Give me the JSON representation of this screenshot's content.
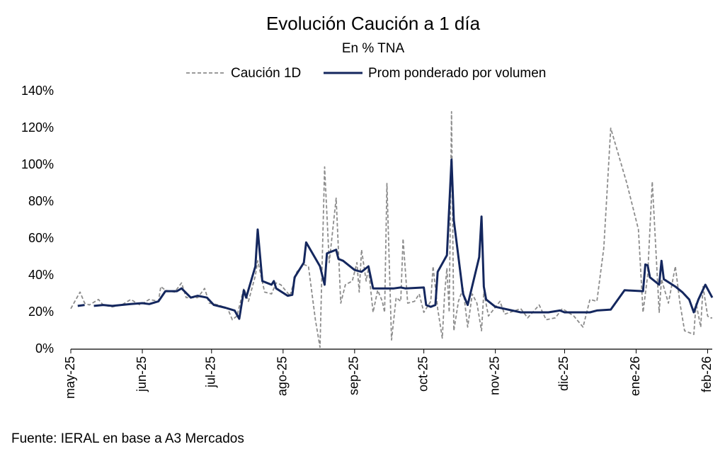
{
  "chart_data": {
    "type": "line",
    "title": "Evolución Caución a 1 día",
    "subtitle": "En % TNA",
    "source": "Fuente: IERAL en base a A3 Mercados",
    "xlim": [
      0,
      278
    ],
    "xticks": [
      {
        "value": 0,
        "label": "may-25"
      },
      {
        "value": 31,
        "label": "jun-25"
      },
      {
        "value": 61,
        "label": "jul-25"
      },
      {
        "value": 92,
        "label": "ago-25"
      },
      {
        "value": 123,
        "label": "sep-25"
      },
      {
        "value": 153,
        "label": "oct-25"
      },
      {
        "value": 184,
        "label": "nov-25"
      },
      {
        "value": 214,
        "label": "dic-25"
      },
      {
        "value": 245,
        "label": "ene-26"
      },
      {
        "value": 276,
        "label": "feb-26"
      }
    ],
    "ylim": [
      0,
      140
    ],
    "yticks": [
      {
        "value": 0,
        "label": "0%"
      },
      {
        "value": 20,
        "label": "20%"
      },
      {
        "value": 40,
        "label": "40%"
      },
      {
        "value": 60,
        "label": "60%"
      },
      {
        "value": 80,
        "label": "80%"
      },
      {
        "value": 100,
        "label": "100%"
      },
      {
        "value": 120,
        "label": "120%"
      },
      {
        "value": 140,
        "label": "140%"
      }
    ],
    "series": [
      {
        "name": "Caución 1D",
        "color": "#8c8c8c",
        "dashed": true,
        "x": [
          0,
          4,
          6,
          8,
          12,
          14,
          18,
          22,
          26,
          30,
          34,
          38,
          39,
          41,
          45,
          48,
          50,
          55,
          58,
          60,
          64,
          68,
          70,
          72,
          75,
          77,
          80,
          81,
          84,
          87,
          89,
          91,
          95,
          98,
          101,
          103,
          106,
          108,
          110,
          112,
          115,
          117,
          119,
          122,
          124,
          125,
          126,
          128,
          129,
          131,
          133,
          135,
          136,
          137,
          139,
          141,
          143,
          144,
          146,
          149,
          151,
          153,
          154,
          156,
          157,
          159,
          161,
          162,
          163,
          164,
          165,
          166,
          168,
          170,
          172,
          174,
          176,
          178,
          179,
          181,
          186,
          188,
          195,
          198,
          203,
          206,
          210,
          213,
          218,
          222,
          225,
          228,
          231,
          234,
          241,
          246,
          248,
          250,
          252,
          255,
          256,
          259,
          262,
          264,
          266,
          270,
          271,
          273,
          274,
          276,
          277,
          278
        ],
        "values": [
          22,
          31,
          25,
          24,
          27,
          24,
          23,
          24,
          27,
          24,
          27,
          26,
          34,
          32,
          31,
          36,
          28,
          28,
          33,
          25,
          24,
          22,
          16,
          18,
          33,
          26,
          40,
          48,
          31,
          30,
          36,
          35,
          29,
          42,
          46,
          45,
          16,
          1,
          99,
          47,
          82,
          25,
          35,
          37,
          47,
          31,
          54,
          37,
          44,
          20,
          32,
          26,
          20,
          90,
          5,
          28,
          26,
          60,
          25,
          26,
          30,
          20,
          22,
          26,
          45,
          22,
          6,
          30,
          44,
          20,
          129,
          10,
          26,
          33,
          12,
          30,
          25,
          10,
          31,
          18,
          26,
          19,
          22,
          17,
          24,
          16,
          17,
          22,
          18,
          12,
          27,
          26,
          55,
          120,
          90,
          65,
          20,
          40,
          91,
          20,
          38,
          25,
          45,
          25,
          10,
          8,
          25,
          12,
          34,
          18,
          17,
          17
        ]
      },
      {
        "name": "Prom ponderado por volumen",
        "color": "#14275e",
        "dashed": false,
        "x": [
          3,
          6,
          8,
          10,
          14,
          18,
          26,
          31,
          34,
          38,
          41,
          46,
          48,
          52,
          55,
          59,
          62,
          67,
          71,
          73,
          75,
          76,
          80,
          81,
          83,
          87,
          88,
          89,
          94,
          96,
          97,
          101,
          102,
          108,
          110,
          111,
          115,
          116,
          118,
          123,
          126,
          129,
          131,
          140,
          143,
          145,
          153,
          154,
          156,
          158,
          159,
          163,
          165,
          166,
          170,
          172,
          177,
          178,
          179,
          180,
          184,
          195,
          207,
          212,
          214,
          225,
          228,
          234,
          240,
          248,
          249,
          250,
          251,
          255,
          256,
          257,
          262,
          263,
          265,
          268,
          270,
          272,
          275,
          278
        ],
        "values": [
          23.5,
          24,
          null,
          23.5,
          24,
          23.5,
          24.5,
          25,
          24.5,
          26,
          31.5,
          31.5,
          33,
          28,
          29,
          28,
          24,
          22.5,
          21,
          16.5,
          32,
          28,
          45,
          65,
          37,
          35,
          37,
          33,
          29,
          29.5,
          39,
          47,
          58,
          45,
          35,
          52,
          54,
          49,
          48,
          43,
          42,
          45,
          33,
          33,
          33.5,
          33,
          33.5,
          24,
          23,
          24,
          42,
          51,
          103,
          70,
          30,
          24,
          50,
          72,
          34,
          27,
          23,
          20,
          20,
          21,
          20,
          20,
          21,
          21.5,
          32,
          31.5,
          46,
          45.5,
          39,
          35,
          48,
          38,
          34,
          33,
          31,
          27,
          20,
          27,
          35,
          28
        ]
      }
    ]
  }
}
